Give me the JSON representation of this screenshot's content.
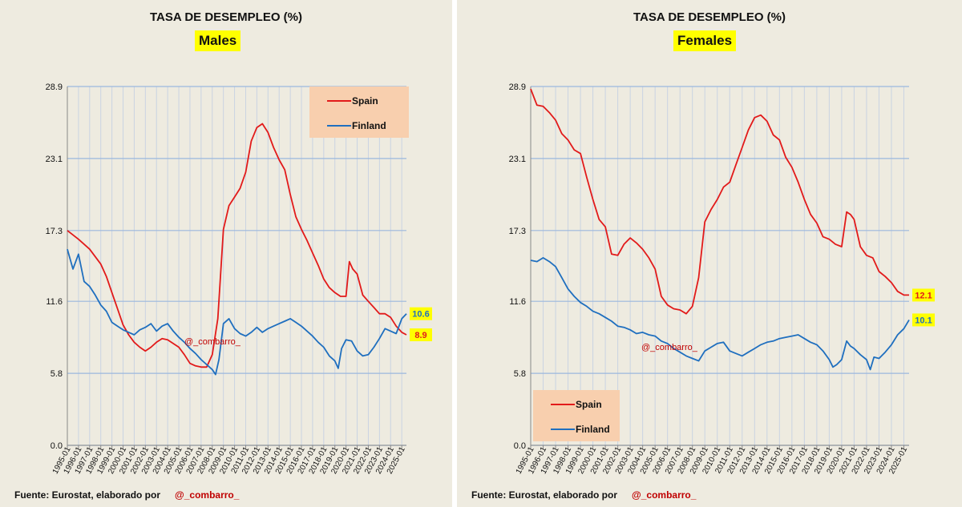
{
  "footer": {
    "source_text": "Fuente: Eurostat, elaborado por",
    "handle": "@_combarro_"
  },
  "colors": {
    "spain": "#e21a1a",
    "finland": "#1f6fbf",
    "panel_bg": "#eeebe0",
    "legend_bg": "#f8cfae",
    "label_bg": "#ffff00",
    "grid": "#9bb8de"
  },
  "chart_data": [
    {
      "type": "line",
      "title": "TASA DE DESEMPLEO (%)",
      "subtitle": "Males",
      "watermark": "@_combarro_",
      "ylim": [
        0,
        28.9
      ],
      "y_ticks": [
        0.0,
        5.8,
        11.6,
        17.3,
        23.1,
        28.9
      ],
      "y_tick_labels": [
        "0.0",
        "5.8",
        "11.6",
        "17.3",
        "23.1",
        "28.9"
      ],
      "x_range": [
        1995.0,
        2025.42
      ],
      "x_tick_labels": [
        "1995-01",
        "1996-01",
        "1997-01",
        "1998-01",
        "1999-01",
        "2000-01",
        "2001-01",
        "2002-01",
        "2003-01",
        "2004-01",
        "2005-01",
        "2006-01",
        "2007-01",
        "2008-01",
        "2009-01",
        "2010-01",
        "2011-01",
        "2012-01",
        "2013-01",
        "2014-01",
        "2015-01",
        "2016-01",
        "2017-01",
        "2018-01",
        "2019-01",
        "2020-01",
        "2021-01",
        "2022-01",
        "2023-01",
        "2024-01",
        "2025-01"
      ],
      "legend_position": "top-right",
      "end_labels": [
        {
          "series": "Finland",
          "text": "10.6",
          "value": 10.6
        },
        {
          "series": "Spain",
          "text": "8.9",
          "value": 8.9
        }
      ],
      "series": [
        {
          "name": "Spain",
          "color": "#e21a1a",
          "x": [
            1995.0,
            1996.0,
            1997.0,
            1998.0,
            1998.5,
            1999.0,
            1999.5,
            2000.0,
            2000.5,
            2001.0,
            2001.5,
            2002.0,
            2002.5,
            2003.0,
            2003.5,
            2004.0,
            2004.5,
            2005.0,
            2005.5,
            2006.0,
            2006.5,
            2007.0,
            2007.5,
            2008.0,
            2008.5,
            2009.0,
            2009.5,
            2010.0,
            2010.5,
            2011.0,
            2011.5,
            2012.0,
            2012.5,
            2013.0,
            2013.5,
            2014.0,
            2014.5,
            2015.0,
            2015.5,
            2016.0,
            2016.5,
            2017.0,
            2017.5,
            2018.0,
            2018.5,
            2019.0,
            2019.5,
            2020.0,
            2020.3,
            2020.6,
            2021.0,
            2021.5,
            2022.0,
            2022.5,
            2023.0,
            2023.5,
            2024.0,
            2024.5,
            2025.0,
            2025.42
          ],
          "y": [
            17.3,
            16.6,
            15.8,
            14.6,
            13.6,
            12.3,
            11.0,
            9.7,
            8.9,
            8.3,
            7.9,
            7.6,
            7.9,
            8.3,
            8.6,
            8.5,
            8.2,
            7.9,
            7.3,
            6.6,
            6.4,
            6.3,
            6.3,
            7.3,
            10.2,
            17.4,
            19.3,
            20.0,
            20.7,
            22.0,
            24.5,
            25.6,
            25.9,
            25.2,
            24.0,
            23.0,
            22.2,
            20.2,
            18.4,
            17.4,
            16.5,
            15.5,
            14.5,
            13.4,
            12.7,
            12.3,
            12.0,
            12.0,
            14.8,
            14.2,
            13.8,
            12.1,
            11.6,
            11.1,
            10.6,
            10.6,
            10.3,
            9.6,
            9.1,
            8.9
          ]
        },
        {
          "name": "Finland",
          "color": "#1f6fbf",
          "x": [
            1995.0,
            1995.5,
            1996.0,
            1996.5,
            1997.0,
            1997.5,
            1998.0,
            1998.5,
            1999.0,
            1999.5,
            2000.0,
            2000.5,
            2001.0,
            2001.5,
            2002.0,
            2002.5,
            2003.0,
            2003.5,
            2004.0,
            2004.5,
            2005.0,
            2005.5,
            2006.0,
            2006.5,
            2007.0,
            2007.5,
            2008.0,
            2008.3,
            2008.6,
            2009.0,
            2009.5,
            2010.0,
            2010.5,
            2011.0,
            2011.5,
            2012.0,
            2012.5,
            2013.0,
            2013.5,
            2014.0,
            2014.5,
            2015.0,
            2015.5,
            2016.0,
            2016.5,
            2017.0,
            2017.5,
            2018.0,
            2018.5,
            2019.0,
            2019.3,
            2019.6,
            2020.0,
            2020.5,
            2021.0,
            2021.5,
            2022.0,
            2022.5,
            2023.0,
            2023.5,
            2024.0,
            2024.5,
            2025.0,
            2025.42
          ],
          "y": [
            15.8,
            14.2,
            15.4,
            13.2,
            12.8,
            12.1,
            11.3,
            10.8,
            9.9,
            9.6,
            9.3,
            9.1,
            8.9,
            9.3,
            9.5,
            9.8,
            9.2,
            9.6,
            9.8,
            9.2,
            8.7,
            8.3,
            7.8,
            7.4,
            6.9,
            6.5,
            6.1,
            5.7,
            6.9,
            9.8,
            10.2,
            9.4,
            9.0,
            8.8,
            9.1,
            9.5,
            9.1,
            9.4,
            9.6,
            9.8,
            10.0,
            10.2,
            9.9,
            9.6,
            9.2,
            8.8,
            8.3,
            7.9,
            7.2,
            6.8,
            6.2,
            7.8,
            8.5,
            8.4,
            7.6,
            7.2,
            7.3,
            7.9,
            8.6,
            9.4,
            9.2,
            9.0,
            10.2,
            10.6
          ]
        }
      ]
    },
    {
      "type": "line",
      "title": "TASA DE DESEMPLEO (%)",
      "subtitle": "Females",
      "watermark": "@_combarro_",
      "ylim": [
        0,
        28.9
      ],
      "y_ticks": [
        0.0,
        5.8,
        11.6,
        17.3,
        23.1,
        28.9
      ],
      "y_tick_labels": [
        "0.0",
        "5.8",
        "11.6",
        "17.3",
        "23.1",
        "28.9"
      ],
      "x_range": [
        1995.0,
        2025.42
      ],
      "x_tick_labels": [
        "1995-01",
        "1996-01",
        "1997-01",
        "1998-01",
        "1999-01",
        "2000-01",
        "2001-01",
        "2002-01",
        "2003-01",
        "2004-01",
        "2005-01",
        "2006-01",
        "2007-01",
        "2008-01",
        "2009-01",
        "2010-01",
        "2011-01",
        "2012-01",
        "2013-01",
        "2014-01",
        "2015-01",
        "2016-01",
        "2017-01",
        "2018-01",
        "2019-01",
        "2020-01",
        "2021-01",
        "2022-01",
        "2023-01",
        "2024-01",
        "2025-01"
      ],
      "legend_position": "bottom-left",
      "end_labels": [
        {
          "series": "Spain",
          "text": "12.1",
          "value": 12.1
        },
        {
          "series": "Finland",
          "text": "10.1",
          "value": 10.1
        }
      ],
      "series": [
        {
          "name": "Spain",
          "color": "#e21a1a",
          "x": [
            1995.0,
            1995.5,
            1996.0,
            1996.5,
            1997.0,
            1997.5,
            1998.0,
            1998.5,
            1999.0,
            1999.5,
            2000.0,
            2000.5,
            2001.0,
            2001.5,
            2002.0,
            2002.5,
            2003.0,
            2003.5,
            2004.0,
            2004.5,
            2005.0,
            2005.5,
            2006.0,
            2006.5,
            2007.0,
            2007.5,
            2008.0,
            2008.5,
            2009.0,
            2009.5,
            2010.0,
            2010.5,
            2011.0,
            2011.5,
            2012.0,
            2012.5,
            2013.0,
            2013.5,
            2014.0,
            2014.5,
            2015.0,
            2015.5,
            2016.0,
            2016.5,
            2017.0,
            2017.5,
            2018.0,
            2018.5,
            2019.0,
            2019.5,
            2020.0,
            2020.4,
            2020.7,
            2021.0,
            2021.5,
            2022.0,
            2022.5,
            2023.0,
            2023.5,
            2024.0,
            2024.5,
            2025.0,
            2025.42
          ],
          "y": [
            28.7,
            27.4,
            27.3,
            26.8,
            26.2,
            25.1,
            24.6,
            23.8,
            23.5,
            21.6,
            19.8,
            18.2,
            17.6,
            15.4,
            15.3,
            16.2,
            16.7,
            16.3,
            15.8,
            15.1,
            14.2,
            12.0,
            11.3,
            11.0,
            10.9,
            10.6,
            11.2,
            13.5,
            18.0,
            19.0,
            19.8,
            20.8,
            21.2,
            22.6,
            24.0,
            25.4,
            26.4,
            26.6,
            26.1,
            25.0,
            24.6,
            23.2,
            22.4,
            21.2,
            19.8,
            18.6,
            17.9,
            16.8,
            16.6,
            16.2,
            16.0,
            18.8,
            18.6,
            18.2,
            16.0,
            15.3,
            15.1,
            14.0,
            13.6,
            13.1,
            12.4,
            12.1,
            12.1
          ]
        },
        {
          "name": "Finland",
          "color": "#1f6fbf",
          "x": [
            1995.0,
            1995.5,
            1996.0,
            1996.5,
            1997.0,
            1997.5,
            1998.0,
            1998.5,
            1999.0,
            1999.5,
            2000.0,
            2000.5,
            2001.0,
            2001.5,
            2002.0,
            2002.5,
            2003.0,
            2003.5,
            2004.0,
            2004.5,
            2005.0,
            2005.5,
            2006.0,
            2006.5,
            2007.0,
            2007.5,
            2008.0,
            2008.5,
            2009.0,
            2009.5,
            2010.0,
            2010.5,
            2011.0,
            2011.5,
            2012.0,
            2012.5,
            2013.0,
            2013.5,
            2014.0,
            2014.5,
            2015.0,
            2015.5,
            2016.0,
            2016.5,
            2017.0,
            2017.5,
            2018.0,
            2018.5,
            2019.0,
            2019.3,
            2019.6,
            2020.0,
            2020.4,
            2020.7,
            2021.0,
            2021.5,
            2022.0,
            2022.3,
            2022.6,
            2023.0,
            2023.5,
            2024.0,
            2024.5,
            2025.0,
            2025.42
          ],
          "y": [
            14.9,
            14.8,
            15.1,
            14.8,
            14.4,
            13.5,
            12.6,
            12.0,
            11.5,
            11.2,
            10.8,
            10.6,
            10.3,
            10.0,
            9.6,
            9.5,
            9.3,
            9.0,
            9.1,
            8.9,
            8.8,
            8.4,
            8.2,
            7.8,
            7.5,
            7.2,
            7.0,
            6.8,
            7.6,
            7.9,
            8.2,
            8.3,
            7.6,
            7.4,
            7.2,
            7.5,
            7.8,
            8.1,
            8.3,
            8.4,
            8.6,
            8.7,
            8.8,
            8.9,
            8.6,
            8.3,
            8.1,
            7.6,
            6.9,
            6.3,
            6.5,
            6.9,
            8.4,
            8.0,
            7.8,
            7.3,
            6.9,
            6.1,
            7.1,
            7.0,
            7.5,
            8.1,
            8.9,
            9.4,
            10.1
          ]
        }
      ]
    }
  ]
}
